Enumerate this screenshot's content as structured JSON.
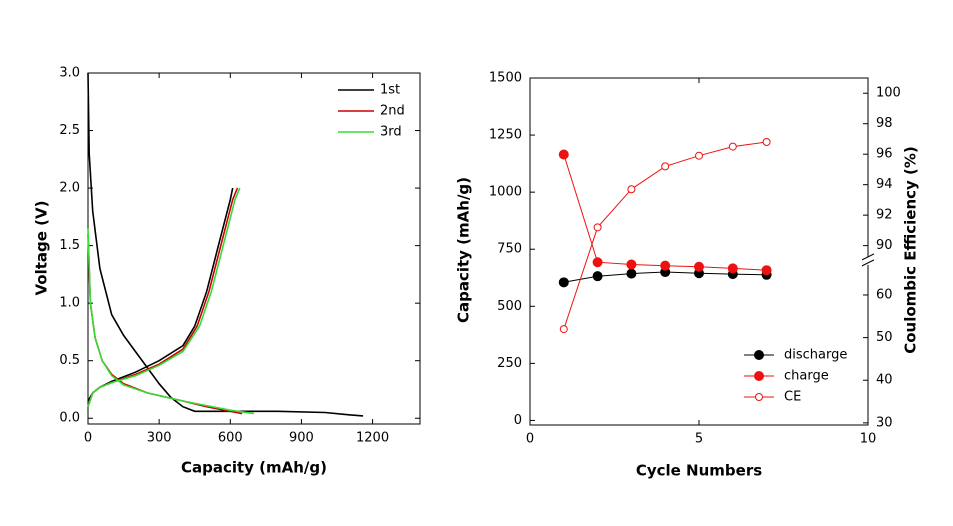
{
  "chart_data": [
    {
      "type": "line",
      "xlabel": "Capacity (mAh/g)",
      "ylabel": "Voltage (V)",
      "xlim": [
        0,
        1400
      ],
      "xticks": [
        0,
        300,
        600,
        900,
        1200
      ],
      "ylim": [
        -0.05,
        3.0
      ],
      "yticks": [
        {
          "value": 0,
          "label": "0.0"
        },
        0.5,
        {
          "value": 1,
          "label": "1.0"
        },
        1.5,
        {
          "value": 2,
          "label": "2.0"
        },
        2.5,
        {
          "value": 3,
          "label": "3.0"
        }
      ],
      "legend": "top-right",
      "series": [
        {
          "name": "1st",
          "color": "#000000",
          "x": [
            0,
            5,
            20,
            50,
            100,
            150,
            200,
            250,
            300,
            350,
            400,
            450,
            600,
            800,
            1000,
            1100,
            1160,
            null,
            0,
            20,
            50,
            100,
            200,
            300,
            400,
            450,
            500,
            550,
            600,
            610
          ],
          "values": [
            3.0,
            2.3,
            1.8,
            1.3,
            0.9,
            0.72,
            0.58,
            0.44,
            0.3,
            0.18,
            0.1,
            0.06,
            0.06,
            0.06,
            0.05,
            0.03,
            0.02,
            null,
            0.15,
            0.22,
            0.27,
            0.32,
            0.4,
            0.5,
            0.63,
            0.8,
            1.1,
            1.5,
            1.9,
            2.0
          ]
        },
        {
          "name": "2nd",
          "color": "#cc0000",
          "x": [
            0,
            10,
            30,
            60,
            100,
            150,
            250,
            400,
            500,
            600,
            650,
            null,
            0,
            20,
            50,
            100,
            200,
            300,
            400,
            460,
            510,
            560,
            610,
            630
          ],
          "values": [
            1.6,
            1.0,
            0.7,
            0.5,
            0.38,
            0.3,
            0.22,
            0.15,
            0.1,
            0.06,
            0.04,
            null,
            0.1,
            0.22,
            0.27,
            0.31,
            0.38,
            0.47,
            0.6,
            0.8,
            1.1,
            1.5,
            1.9,
            2.0
          ]
        },
        {
          "name": "3rd",
          "color": "#33dd33",
          "x": [
            0,
            10,
            30,
            60,
            100,
            150,
            250,
            400,
            500,
            600,
            700,
            null,
            0,
            20,
            50,
            100,
            200,
            300,
            400,
            470,
            520,
            570,
            620,
            640
          ],
          "values": [
            1.65,
            1.0,
            0.7,
            0.5,
            0.37,
            0.29,
            0.22,
            0.15,
            0.11,
            0.07,
            0.04,
            null,
            0.1,
            0.22,
            0.27,
            0.31,
            0.37,
            0.46,
            0.58,
            0.8,
            1.1,
            1.5,
            1.9,
            2.0
          ]
        }
      ]
    },
    {
      "type": "dual",
      "xlabel": "Cycle Numbers",
      "ylabel": "Capacity (mAh/g)",
      "y2label": "Coulombic Efficiency (%)",
      "xlim": [
        0,
        10
      ],
      "xticks": [
        0,
        5,
        10
      ],
      "ylim": [
        -20,
        1500
      ],
      "yticks": [
        0,
        250,
        500,
        750,
        1000,
        1250,
        1500
      ],
      "y2lim": [
        29.5,
        101
      ],
      "y2break": [
        68,
        89
      ],
      "y2ticks": [
        30,
        40,
        50,
        60,
        90,
        92,
        94,
        96,
        98,
        100
      ],
      "legend": "bottom-right",
      "x": [
        1,
        2,
        3,
        4,
        5,
        6,
        7
      ],
      "series": [
        {
          "name": "discharge",
          "color": "#000000",
          "marker": "filled",
          "values": [
            605,
            632,
            643,
            650,
            645,
            641,
            638
          ]
        },
        {
          "name": "charge",
          "color": "#ee1111",
          "marker": "filled",
          "values": [
            1165,
            693,
            683,
            678,
            673,
            666,
            658
          ]
        },
        {
          "name": "CE",
          "color": "#ee1111",
          "marker": "open",
          "axis": "y2",
          "values": [
            52,
            91.2,
            93.7,
            95.2,
            95.9,
            96.5,
            96.8
          ]
        }
      ]
    }
  ]
}
